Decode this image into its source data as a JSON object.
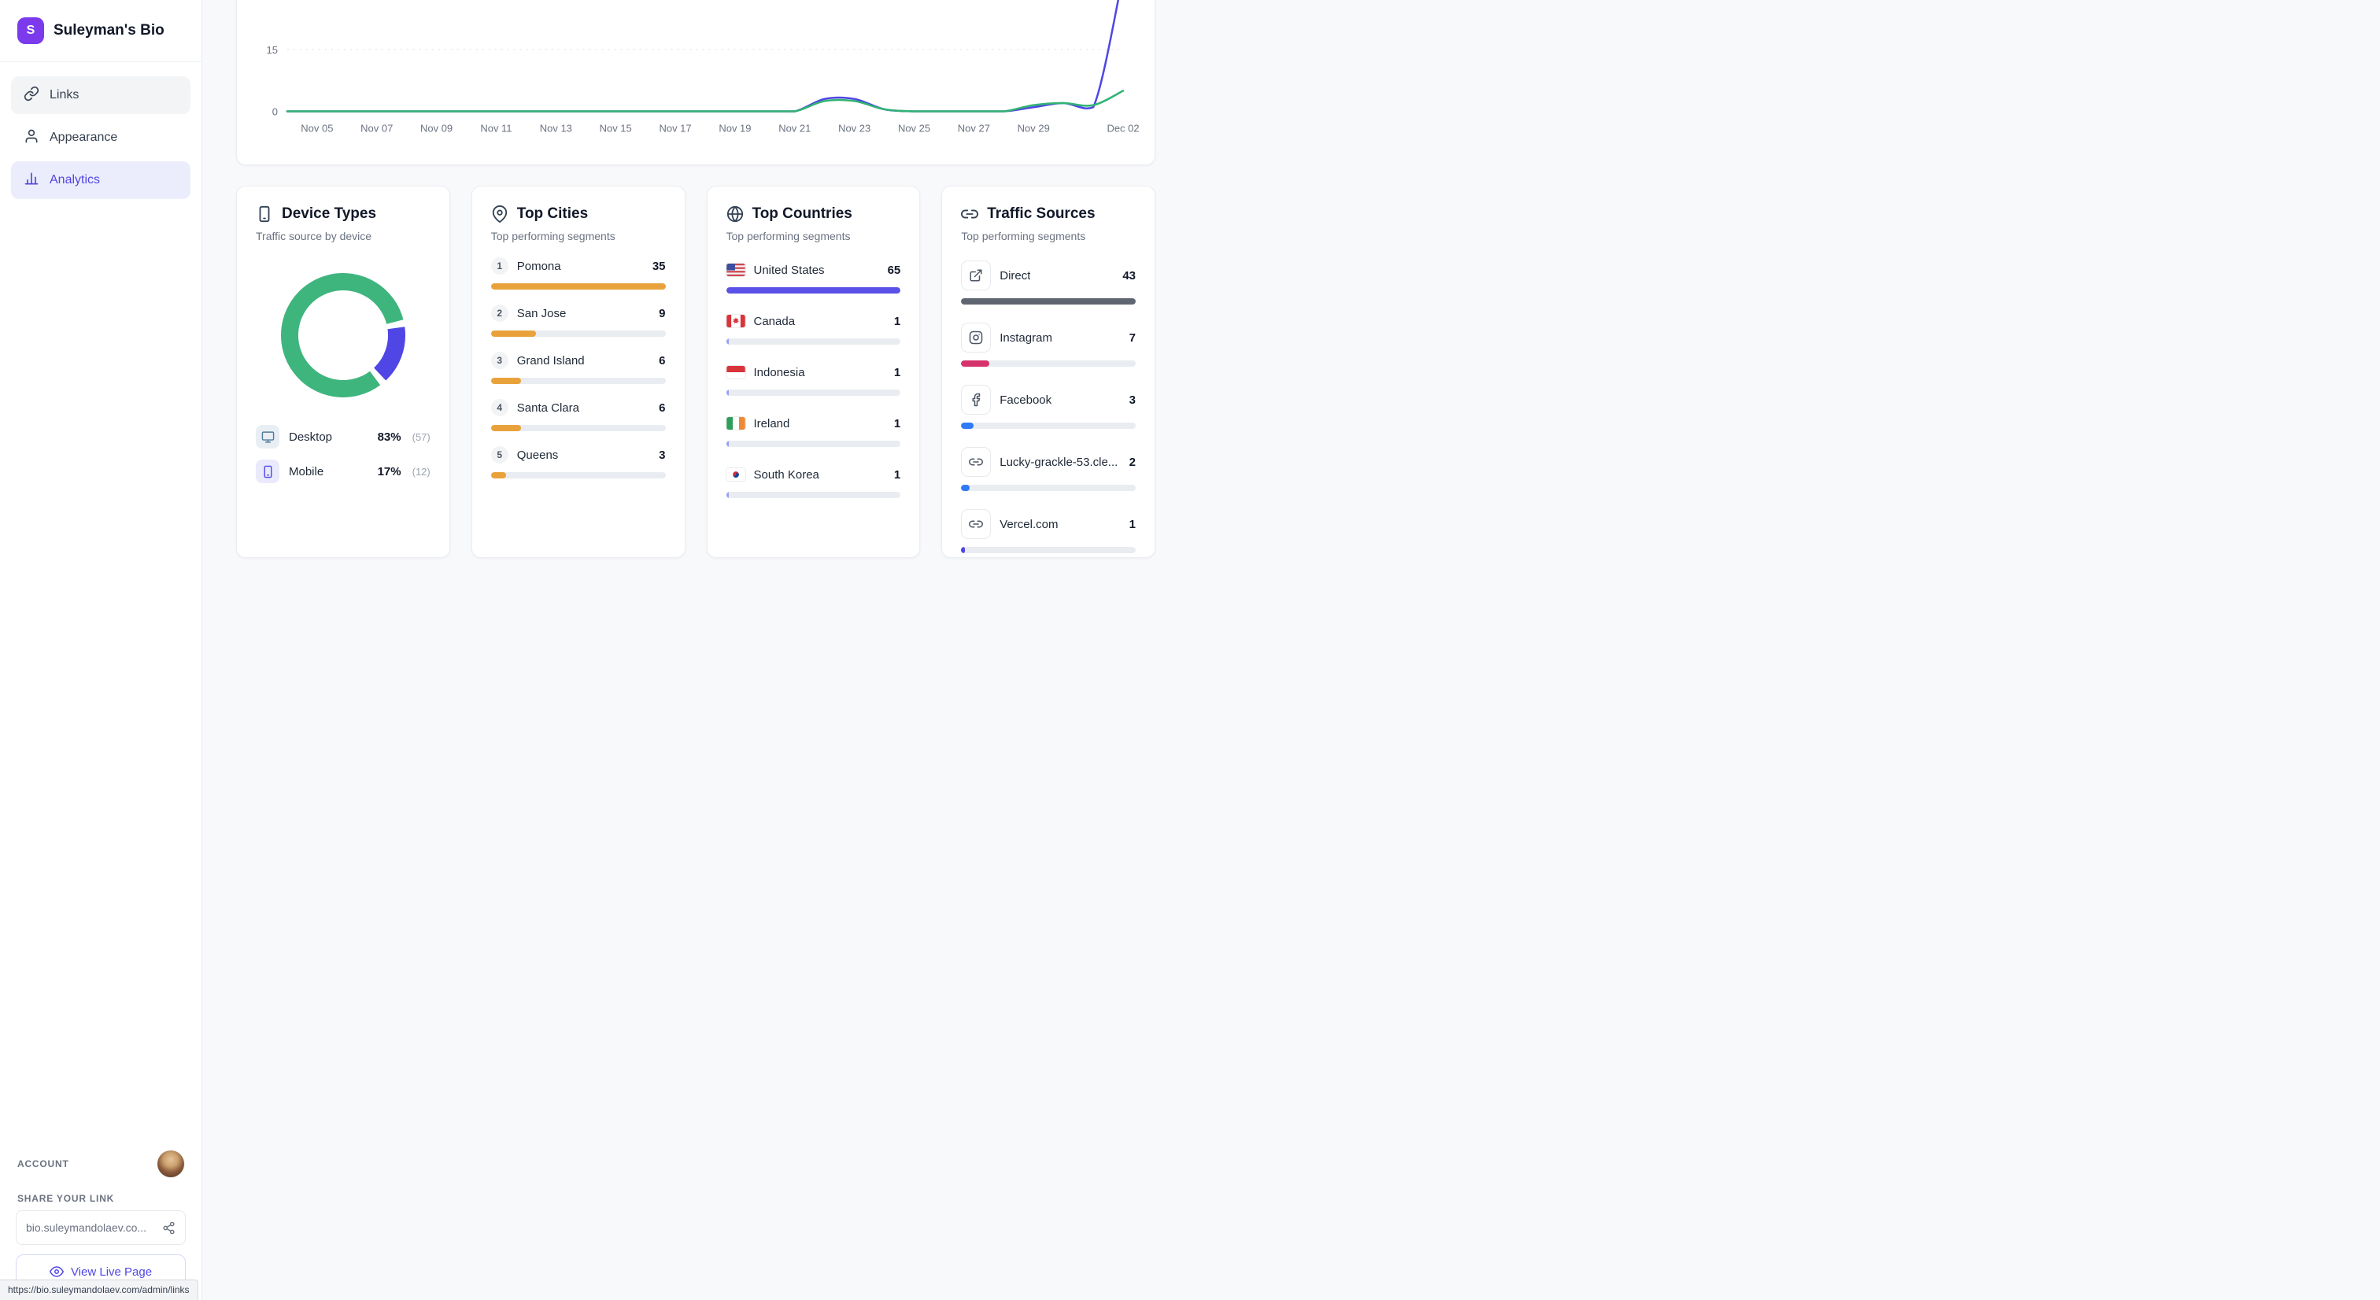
{
  "sidebar": {
    "logo_letter": "S",
    "title": "Suleyman's Bio",
    "nav": [
      {
        "label": "Links"
      },
      {
        "label": "Appearance"
      },
      {
        "label": "Analytics"
      }
    ],
    "account_label": "ACCOUNT",
    "share_label": "SHARE YOUR LINK",
    "share_url": "bio.suleymandolaev.co...",
    "view_live_label": "View Live Page",
    "status_url": "https://bio.suleymandolaev.com/admin/links"
  },
  "chart_data": [
    {
      "type": "line",
      "n_points": 29,
      "yticks": [
        0,
        15
      ],
      "xticks": [
        {
          "label": "Nov 05",
          "i": 1
        },
        {
          "label": "Nov 07",
          "i": 3
        },
        {
          "label": "Nov 09",
          "i": 5
        },
        {
          "label": "Nov 11",
          "i": 7
        },
        {
          "label": "Nov 13",
          "i": 9
        },
        {
          "label": "Nov 15",
          "i": 11
        },
        {
          "label": "Nov 17",
          "i": 13
        },
        {
          "label": "Nov 19",
          "i": 15
        },
        {
          "label": "Nov 21",
          "i": 17
        },
        {
          "label": "Nov 23",
          "i": 19
        },
        {
          "label": "Nov 25",
          "i": 21
        },
        {
          "label": "Nov 27",
          "i": 23
        },
        {
          "label": "Nov 29",
          "i": 25
        },
        {
          "label": "Dec 02",
          "i": 28
        }
      ],
      "series": [
        {
          "name": "blue",
          "color": "#4f46e5",
          "values": [
            0,
            0,
            0,
            0,
            0,
            0,
            0,
            0,
            0,
            0,
            0,
            0,
            0,
            0,
            0,
            0,
            0,
            0,
            3,
            3,
            0.5,
            0,
            0,
            0,
            0,
            1,
            2,
            1,
            33
          ]
        },
        {
          "name": "green",
          "color": "#31b373",
          "values": [
            0,
            0,
            0,
            0,
            0,
            0,
            0,
            0,
            0,
            0,
            0,
            0,
            0,
            0,
            0,
            0,
            0,
            0,
            2.5,
            2.5,
            0.5,
            0,
            0,
            0,
            0,
            1.5,
            2,
            1.5,
            5
          ]
        }
      ],
      "grid_color": "#d8dce3",
      "tick_color": "#6b7280"
    },
    {
      "type": "pie",
      "labels": [
        "Desktop",
        "Mobile"
      ],
      "values": [
        83,
        17
      ],
      "counts": [
        57,
        12
      ],
      "colors": [
        "#3eb57d",
        "#4f46e5"
      ]
    }
  ],
  "cards": {
    "device_types": {
      "title": "Device Types",
      "subtitle": "Traffic source by device",
      "legend": [
        {
          "label": "Desktop",
          "percent": "83%",
          "count": "(57)"
        },
        {
          "label": "Mobile",
          "percent": "17%",
          "count": "(12)"
        }
      ]
    },
    "top_cities": {
      "title": "Top Cities",
      "subtitle": "Top performing segments",
      "items": [
        {
          "rank": "1",
          "label": "Pomona",
          "value": "35",
          "bar_color": "#e9a23b"
        },
        {
          "rank": "2",
          "label": "San Jose",
          "value": "9",
          "bar_color": "#e9a23b"
        },
        {
          "rank": "3",
          "label": "Grand Island",
          "value": "6",
          "bar_color": "#e9a23b"
        },
        {
          "rank": "4",
          "label": "Santa Clara",
          "value": "6",
          "bar_color": "#e9a23b"
        },
        {
          "rank": "5",
          "label": "Queens",
          "value": "3",
          "bar_color": "#e9a23b"
        }
      ]
    },
    "top_countries": {
      "title": "Top Countries",
      "subtitle": "Top performing segments",
      "items": [
        {
          "flag": "us",
          "label": "United States",
          "value": "65",
          "bar_color": "#5a51e6"
        },
        {
          "flag": "ca",
          "label": "Canada",
          "value": "1",
          "bar_color": "#9aa0f5"
        },
        {
          "flag": "id",
          "label": "Indonesia",
          "value": "1",
          "bar_color": "#9aa0f5"
        },
        {
          "flag": "ie",
          "label": "Ireland",
          "value": "1",
          "bar_color": "#9aa0f5"
        },
        {
          "flag": "kr",
          "label": "South Korea",
          "value": "1",
          "bar_color": "#9aa0f5"
        }
      ]
    },
    "traffic_sources": {
      "title": "Traffic Sources",
      "subtitle": "Top performing segments",
      "items": [
        {
          "icon": "external-link-icon",
          "label": "Direct",
          "value": "43",
          "bar_color": "#5f6672"
        },
        {
          "icon": "instagram-icon",
          "label": "Instagram",
          "value": "7",
          "bar_color": "#d6336c"
        },
        {
          "icon": "facebook-icon",
          "label": "Facebook",
          "value": "3",
          "bar_color": "#2f7bf6"
        },
        {
          "icon": "link-icon",
          "label": "Lucky-grackle-53.cle...",
          "value": "2",
          "bar_color": "#2f7bf6"
        },
        {
          "icon": "link-icon",
          "label": "Vercel.com",
          "value": "1",
          "bar_color": "#4f46e5"
        }
      ]
    }
  }
}
